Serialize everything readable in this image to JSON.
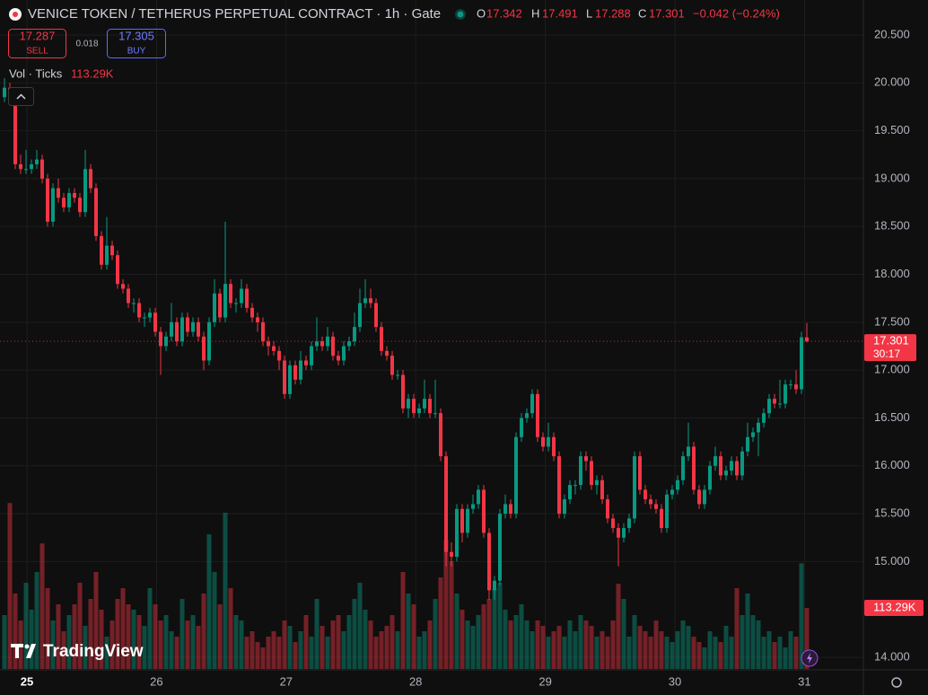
{
  "chart_data": {
    "type": "candlestick",
    "title": "VENICE TOKEN / TETHERUS PERPETUAL CONTRACT · 1h · Gate",
    "ohlc_labels": [
      "O",
      "H",
      "L",
      "C"
    ],
    "change_label": "−0.042 (−0.24%)",
    "bid": 17.287,
    "bid_label": "SELL",
    "spread": 0.018,
    "ask": 17.305,
    "ask_label": "BUY",
    "volume_title": "Vol · Ticks",
    "volume_label": "113.29K",
    "countdown": "30:17",
    "logo": "TradingView",
    "up_color": "#089981",
    "down_color": "#f23645",
    "ylim": [
      14.0,
      20.5
    ],
    "yticks": [
      {
        "value": 20.5,
        "label": "20.500"
      },
      {
        "value": 20.0,
        "label": "20.000"
      },
      {
        "value": 19.5,
        "label": "19.500"
      },
      {
        "value": 19.0,
        "label": "19.000"
      },
      {
        "value": 18.5,
        "label": "18.500"
      },
      {
        "value": 18.0,
        "label": "18.000"
      },
      {
        "value": 17.5,
        "label": "17.500"
      },
      {
        "value": 17.0,
        "label": "17.000"
      },
      {
        "value": 16.5,
        "label": "16.500"
      },
      {
        "value": 16.0,
        "label": "16.000"
      },
      {
        "value": 15.5,
        "label": "15.500"
      },
      {
        "value": 15.0,
        "label": "15.000"
      },
      {
        "value": 14.0,
        "label": "14.000"
      }
    ],
    "volume_lim": [
      0,
      400000
    ],
    "xtick_labels": [
      "25",
      "26",
      "27",
      "28",
      "29",
      "30",
      "31"
    ],
    "grid": true,
    "ohlc": [
      [
        19.85,
        20.05,
        19.8,
        19.95
      ],
      [
        19.95,
        20.0,
        19.85,
        19.9
      ],
      [
        19.9,
        19.95,
        19.1,
        19.15
      ],
      [
        19.15,
        19.25,
        19.05,
        19.1
      ],
      [
        19.1,
        19.3,
        19.05,
        19.1
      ],
      [
        19.1,
        19.2,
        19.05,
        19.15
      ],
      [
        19.15,
        19.3,
        19.1,
        19.2
      ],
      [
        19.2,
        19.25,
        18.95,
        19.0
      ],
      [
        19.0,
        19.05,
        18.5,
        18.55
      ],
      [
        18.55,
        18.95,
        18.5,
        18.9
      ],
      [
        18.9,
        19.0,
        18.75,
        18.8
      ],
      [
        18.8,
        18.85,
        18.65,
        18.7
      ],
      [
        18.7,
        18.9,
        18.65,
        18.85
      ],
      [
        18.85,
        18.9,
        18.75,
        18.8
      ],
      [
        18.8,
        18.85,
        18.6,
        18.65
      ],
      [
        18.65,
        19.3,
        18.6,
        19.1
      ],
      [
        19.1,
        19.15,
        18.85,
        18.9
      ],
      [
        18.9,
        18.95,
        18.35,
        18.4
      ],
      [
        18.4,
        18.45,
        18.05,
        18.1
      ],
      [
        18.1,
        18.6,
        18.05,
        18.3
      ],
      [
        18.3,
        18.35,
        18.15,
        18.2
      ],
      [
        18.2,
        18.25,
        17.85,
        17.9
      ],
      [
        17.9,
        17.95,
        17.8,
        17.85
      ],
      [
        17.85,
        17.9,
        17.65,
        17.7
      ],
      [
        17.7,
        17.75,
        17.6,
        17.7
      ],
      [
        17.7,
        17.75,
        17.5,
        17.55
      ],
      [
        17.55,
        17.6,
        17.45,
        17.55
      ],
      [
        17.55,
        17.65,
        17.5,
        17.6
      ],
      [
        17.6,
        17.65,
        17.35,
        17.4
      ],
      [
        17.4,
        17.45,
        16.95,
        17.25
      ],
      [
        17.25,
        17.4,
        17.2,
        17.35
      ],
      [
        17.35,
        17.7,
        17.3,
        17.5
      ],
      [
        17.5,
        17.55,
        17.25,
        17.3
      ],
      [
        17.3,
        17.6,
        17.25,
        17.55
      ],
      [
        17.55,
        17.6,
        17.35,
        17.4
      ],
      [
        17.4,
        17.55,
        17.35,
        17.5
      ],
      [
        17.5,
        17.55,
        17.3,
        17.35
      ],
      [
        17.35,
        17.4,
        17.0,
        17.1
      ],
      [
        17.1,
        17.55,
        17.05,
        17.5
      ],
      [
        17.5,
        17.95,
        17.45,
        17.8
      ],
      [
        17.8,
        17.85,
        17.5,
        17.55
      ],
      [
        17.55,
        18.55,
        17.5,
        17.9
      ],
      [
        17.9,
        17.95,
        17.65,
        17.7
      ],
      [
        17.7,
        17.75,
        17.6,
        17.7
      ],
      [
        17.7,
        17.95,
        17.65,
        17.85
      ],
      [
        17.85,
        17.9,
        17.6,
        17.65
      ],
      [
        17.65,
        17.7,
        17.5,
        17.55
      ],
      [
        17.55,
        17.6,
        17.4,
        17.5
      ],
      [
        17.5,
        17.55,
        17.25,
        17.3
      ],
      [
        17.3,
        17.35,
        17.15,
        17.25
      ],
      [
        17.25,
        17.3,
        17.15,
        17.2
      ],
      [
        17.2,
        17.25,
        17.0,
        17.1
      ],
      [
        17.1,
        17.15,
        16.7,
        16.75
      ],
      [
        16.75,
        17.1,
        16.7,
        17.05
      ],
      [
        17.05,
        17.1,
        16.85,
        16.9
      ],
      [
        16.9,
        17.2,
        16.85,
        17.1
      ],
      [
        17.1,
        17.15,
        17.0,
        17.05
      ],
      [
        17.05,
        17.3,
        17.0,
        17.25
      ],
      [
        17.25,
        17.55,
        17.2,
        17.3
      ],
      [
        17.3,
        17.35,
        17.2,
        17.25
      ],
      [
        17.25,
        17.45,
        17.2,
        17.35
      ],
      [
        17.35,
        17.4,
        17.1,
        17.15
      ],
      [
        17.15,
        17.2,
        17.05,
        17.1
      ],
      [
        17.1,
        17.3,
        17.05,
        17.25
      ],
      [
        17.25,
        17.35,
        17.2,
        17.3
      ],
      [
        17.3,
        17.6,
        17.25,
        17.45
      ],
      [
        17.45,
        17.85,
        17.4,
        17.7
      ],
      [
        17.7,
        17.95,
        17.65,
        17.75
      ],
      [
        17.75,
        17.85,
        17.65,
        17.7
      ],
      [
        17.7,
        17.75,
        17.4,
        17.45
      ],
      [
        17.45,
        17.5,
        17.15,
        17.2
      ],
      [
        17.2,
        17.25,
        17.1,
        17.15
      ],
      [
        17.15,
        17.2,
        16.9,
        16.95
      ],
      [
        16.95,
        17.0,
        16.9,
        16.95
      ],
      [
        16.95,
        17.0,
        16.55,
        16.6
      ],
      [
        16.6,
        16.75,
        16.5,
        16.7
      ],
      [
        16.7,
        16.75,
        16.5,
        16.55
      ],
      [
        16.55,
        16.65,
        16.5,
        16.6
      ],
      [
        16.6,
        16.9,
        16.55,
        16.7
      ],
      [
        16.7,
        16.75,
        16.5,
        16.55
      ],
      [
        16.55,
        16.9,
        16.5,
        16.55
      ],
      [
        16.55,
        16.6,
        16.05,
        16.1
      ],
      [
        16.1,
        16.15,
        14.95,
        15.1
      ],
      [
        15.1,
        15.2,
        14.95,
        15.05
      ],
      [
        15.05,
        15.6,
        15.0,
        15.55
      ],
      [
        15.55,
        15.6,
        15.2,
        15.3
      ],
      [
        15.3,
        15.6,
        15.25,
        15.55
      ],
      [
        15.55,
        15.7,
        15.5,
        15.6
      ],
      [
        15.6,
        15.8,
        15.55,
        15.75
      ],
      [
        15.75,
        15.8,
        15.25,
        15.3
      ],
      [
        15.3,
        15.35,
        14.6,
        14.7
      ],
      [
        14.7,
        14.85,
        14.6,
        14.8
      ],
      [
        14.8,
        15.55,
        14.75,
        15.5
      ],
      [
        15.5,
        15.7,
        15.45,
        15.6
      ],
      [
        15.6,
        15.65,
        15.45,
        15.5
      ],
      [
        15.5,
        16.35,
        15.45,
        16.3
      ],
      [
        16.3,
        16.55,
        16.25,
        16.5
      ],
      [
        16.5,
        16.6,
        16.45,
        16.55
      ],
      [
        16.55,
        16.8,
        16.5,
        16.75
      ],
      [
        16.75,
        16.8,
        16.25,
        16.3
      ],
      [
        16.3,
        16.35,
        16.15,
        16.2
      ],
      [
        16.2,
        16.45,
        16.15,
        16.3
      ],
      [
        16.3,
        16.35,
        16.05,
        16.1
      ],
      [
        16.1,
        16.15,
        15.45,
        15.5
      ],
      [
        15.5,
        15.7,
        15.45,
        15.65
      ],
      [
        15.65,
        15.85,
        15.6,
        15.8
      ],
      [
        15.8,
        15.85,
        15.7,
        15.8
      ],
      [
        15.8,
        16.15,
        15.75,
        16.1
      ],
      [
        16.1,
        16.15,
        15.95,
        16.05
      ],
      [
        16.05,
        16.1,
        15.75,
        15.8
      ],
      [
        15.8,
        15.9,
        15.7,
        15.85
      ],
      [
        15.85,
        15.9,
        15.6,
        15.65
      ],
      [
        15.65,
        15.7,
        15.4,
        15.45
      ],
      [
        15.45,
        15.5,
        15.3,
        15.35
      ],
      [
        15.35,
        15.4,
        14.95,
        15.25
      ],
      [
        15.25,
        15.4,
        15.2,
        15.35
      ],
      [
        15.35,
        15.5,
        15.3,
        15.45
      ],
      [
        15.45,
        16.15,
        15.4,
        16.1
      ],
      [
        16.1,
        16.15,
        15.7,
        15.75
      ],
      [
        15.75,
        15.8,
        15.6,
        15.65
      ],
      [
        15.65,
        15.7,
        15.55,
        15.6
      ],
      [
        15.6,
        15.65,
        15.5,
        15.55
      ],
      [
        15.55,
        15.6,
        15.3,
        15.35
      ],
      [
        15.35,
        15.75,
        15.3,
        15.7
      ],
      [
        15.7,
        15.8,
        15.65,
        15.75
      ],
      [
        15.75,
        15.9,
        15.7,
        15.85
      ],
      [
        15.85,
        16.15,
        15.8,
        16.1
      ],
      [
        16.1,
        16.45,
        16.05,
        16.2
      ],
      [
        16.2,
        16.25,
        15.7,
        15.75
      ],
      [
        15.75,
        15.8,
        15.55,
        15.6
      ],
      [
        15.6,
        15.8,
        15.55,
        15.75
      ],
      [
        15.75,
        16.05,
        15.7,
        16.0
      ],
      [
        16.0,
        16.2,
        15.95,
        16.1
      ],
      [
        16.1,
        16.15,
        15.85,
        15.9
      ],
      [
        15.9,
        16.0,
        15.85,
        15.95
      ],
      [
        15.95,
        16.1,
        15.9,
        16.05
      ],
      [
        16.05,
        16.1,
        15.85,
        15.9
      ],
      [
        15.9,
        16.2,
        15.85,
        16.15
      ],
      [
        16.15,
        16.45,
        16.1,
        16.3
      ],
      [
        16.3,
        16.4,
        16.25,
        16.35
      ],
      [
        16.35,
        16.5,
        16.1,
        16.45
      ],
      [
        16.45,
        16.6,
        16.4,
        16.55
      ],
      [
        16.55,
        16.75,
        16.5,
        16.7
      ],
      [
        16.7,
        16.75,
        16.6,
        16.65
      ],
      [
        16.65,
        16.9,
        16.6,
        16.65
      ],
      [
        16.65,
        16.9,
        16.6,
        16.85
      ],
      [
        16.85,
        16.9,
        16.8,
        16.85
      ],
      [
        16.85,
        17.0,
        16.75,
        16.8
      ],
      [
        16.8,
        17.4,
        16.75,
        17.343
      ],
      [
        17.342,
        17.491,
        17.288,
        17.301
      ]
    ],
    "volume": [
      100000,
      308000,
      140000,
      90000,
      160000,
      110000,
      180000,
      233000,
      150000,
      90000,
      120000,
      70000,
      100000,
      120000,
      160000,
      80000,
      130000,
      180000,
      110000,
      60000,
      90000,
      130000,
      150000,
      120000,
      110000,
      100000,
      80000,
      150000,
      120000,
      90000,
      100000,
      70000,
      60000,
      130000,
      90000,
      100000,
      80000,
      140000,
      250000,
      180000,
      120000,
      290000,
      150000,
      100000,
      90000,
      60000,
      70000,
      50000,
      40000,
      60000,
      70000,
      60000,
      90000,
      80000,
      50000,
      70000,
      100000,
      60000,
      130000,
      80000,
      60000,
      90000,
      100000,
      70000,
      100000,
      130000,
      160000,
      110000,
      90000,
      60000,
      70000,
      80000,
      100000,
      70000,
      180000,
      140000,
      120000,
      60000,
      70000,
      90000,
      130000,
      170000,
      240000,
      200000,
      140000,
      110000,
      90000,
      80000,
      100000,
      120000,
      130000,
      150000,
      160000,
      110000,
      90000,
      100000,
      120000,
      90000,
      70000,
      90000,
      80000,
      60000,
      70000,
      80000,
      60000,
      90000,
      70000,
      100000,
      90000,
      80000,
      60000,
      70000,
      60000,
      90000,
      158000,
      130000,
      60000,
      100000,
      80000,
      70000,
      60000,
      90000,
      70000,
      60000,
      50000,
      70000,
      90000,
      80000,
      60000,
      50000,
      40000,
      70000,
      60000,
      50000,
      80000,
      60000,
      150000,
      100000,
      140000,
      100000,
      90000,
      60000,
      70000,
      50000,
      60000,
      40000,
      70000,
      60000,
      196000,
      113290
    ]
  }
}
